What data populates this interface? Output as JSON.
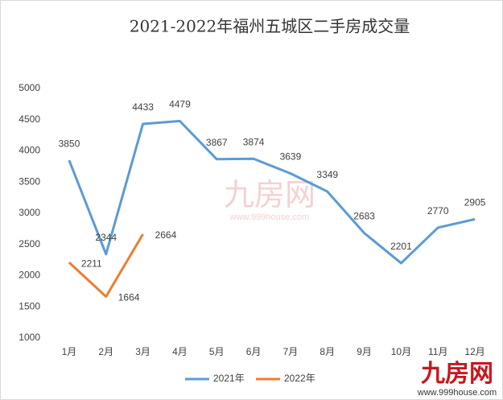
{
  "chart_data": {
    "type": "line",
    "title": "2021-2022年福州五城区二手房成交量",
    "categories": [
      "1月",
      "2月",
      "3月",
      "4月",
      "5月",
      "6月",
      "7月",
      "8月",
      "9月",
      "10月",
      "11月",
      "12月"
    ],
    "series": [
      {
        "name": "2021年",
        "color": "#5b9bd5",
        "values": [
          3850,
          2344,
          4433,
          4479,
          3867,
          3874,
          3639,
          3349,
          2683,
          2201,
          2770,
          2905
        ]
      },
      {
        "name": "2022年",
        "color": "#ed7d31",
        "values": [
          2211,
          1664,
          2664,
          null,
          null,
          null,
          null,
          null,
          null,
          null,
          null,
          null
        ]
      }
    ],
    "ylim": [
      1000,
      5000
    ],
    "yticks": [
      1000,
      1500,
      2000,
      2500,
      3000,
      3500,
      4000,
      4500,
      5000
    ],
    "grid": false,
    "legend": "bottom",
    "watermark": {
      "name": "九房网",
      "url": "www.999house.com"
    }
  }
}
